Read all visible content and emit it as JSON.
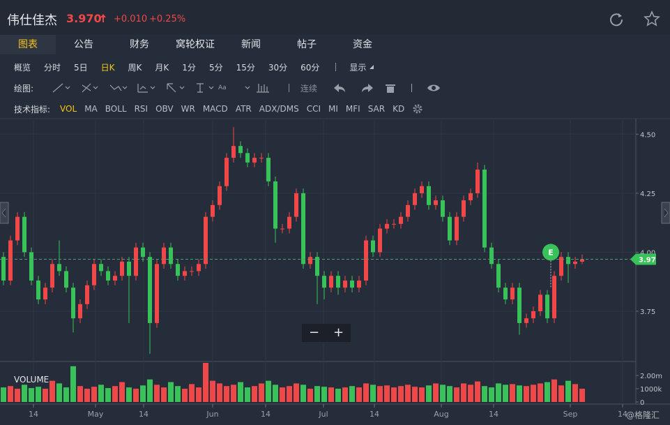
{
  "header": {
    "title": "伟仕佳杰",
    "price": "3.970",
    "change": "+0.010",
    "change_pct": "+0.25%"
  },
  "tabs": {
    "items": [
      "图表",
      "公告",
      "财务",
      "窝轮权证",
      "新闻",
      "帖子",
      "资金"
    ],
    "active": 0
  },
  "periods": {
    "items": [
      "概览",
      "分时",
      "5日",
      "日K",
      "周K",
      "月K",
      "1分",
      "5分",
      "15分",
      "30分",
      "60分"
    ],
    "active": 3,
    "display": "显示"
  },
  "drawing": {
    "label": "绘图:",
    "font_tool": "Aa",
    "continuous": "连续"
  },
  "indicators": {
    "label": "技术指标:",
    "items": [
      "VOL",
      "MA",
      "BOLL",
      "RSI",
      "OBV",
      "WR",
      "MACD",
      "ATR",
      "ADX/DMS",
      "CCI",
      "MI",
      "MFI",
      "SAR",
      "KD"
    ],
    "active": 0
  },
  "zoom": {
    "minus": "−",
    "plus": "+"
  },
  "watermark": "@格隆汇",
  "chart_data": {
    "type": "candlestick",
    "up_color": "#f04848",
    "down_color": "#3ac25a",
    "xlim": [
      -0.5,
      90.7
    ],
    "xticks": [
      {
        "value": 4.3,
        "label": "14"
      },
      {
        "value": 13.2,
        "label": "May"
      },
      {
        "value": 20.1,
        "label": "14"
      },
      {
        "value": 30,
        "label": "Jun"
      },
      {
        "value": 37.6,
        "label": "14"
      },
      {
        "value": 45.9,
        "label": "Jul"
      },
      {
        "value": 53.2,
        "label": "14"
      },
      {
        "value": 62.8,
        "label": "Aug"
      },
      {
        "value": 70.3,
        "label": "14"
      },
      {
        "value": 81.3,
        "label": "Sep"
      },
      {
        "value": 88.8,
        "label": "14"
      }
    ],
    "ylim": [
      3.54,
      4.56
    ],
    "yticks": [
      3.75,
      {
        "value": 4,
        "label": "4.00"
      },
      4.25,
      {
        "value": 4.5,
        "label": "4.50"
      }
    ],
    "grid": true,
    "last_price": 3.97,
    "annotations": [
      {
        "text": "E",
        "x": 78.5,
        "y": 4.0
      }
    ],
    "open": [
      3.98,
      3.88,
      4.05,
      4.15,
      4.0,
      3.88,
      3.8,
      3.85,
      3.95,
      3.92,
      3.85,
      3.72,
      3.78,
      3.86,
      3.95,
      3.92,
      3.88,
      3.9,
      3.96,
      3.9,
      4.02,
      3.98,
      3.7,
      3.95,
      4.02,
      3.95,
      3.9,
      3.92,
      3.92,
      3.95,
      4.15,
      4.2,
      4.28,
      4.4,
      4.45,
      4.42,
      4.38,
      4.4,
      4.4,
      4.3,
      4.1,
      4.1,
      4.15,
      4.25,
      3.95,
      3.98,
      3.9,
      3.85,
      3.9,
      3.85,
      3.88,
      3.85,
      3.88,
      4.05,
      4.0,
      4.1,
      4.12,
      4.12,
      4.15,
      4.2,
      4.25,
      4.28,
      4.2,
      4.22,
      4.15,
      4.05,
      4.15,
      4.22,
      4.25,
      4.35,
      4.02,
      3.95,
      3.85,
      3.8,
      3.85,
      3.7,
      3.72,
      3.75,
      3.82,
      3.72,
      3.9,
      3.98,
      3.95,
      3.96
    ],
    "high": [
      4.0,
      4.07,
      4.17,
      4.17,
      4.02,
      3.9,
      3.87,
      3.97,
      4.05,
      3.94,
      3.87,
      3.8,
      3.88,
      3.97,
      3.97,
      3.94,
      3.92,
      3.98,
      3.98,
      4.04,
      4.04,
      4.0,
      3.97,
      4.04,
      4.04,
      3.97,
      3.94,
      3.94,
      3.97,
      4.17,
      4.22,
      4.3,
      4.42,
      4.53,
      4.47,
      4.44,
      4.42,
      4.42,
      4.42,
      4.32,
      4.12,
      4.17,
      4.27,
      4.27,
      4.0,
      4.0,
      3.92,
      3.92,
      3.92,
      3.9,
      3.9,
      3.9,
      4.07,
      4.07,
      4.12,
      4.14,
      4.14,
      4.17,
      4.22,
      4.27,
      4.3,
      4.3,
      4.24,
      4.24,
      4.17,
      4.17,
      4.24,
      4.27,
      4.38,
      4.37,
      4.04,
      3.97,
      3.87,
      3.87,
      3.87,
      3.74,
      3.77,
      3.84,
      3.84,
      3.92,
      4.0,
      4.0,
      3.98,
      3.99
    ],
    "low": [
      3.86,
      3.86,
      4.03,
      3.98,
      3.86,
      3.78,
      3.78,
      3.83,
      3.9,
      3.83,
      3.66,
      3.7,
      3.76,
      3.84,
      3.9,
      3.86,
      3.86,
      3.88,
      3.7,
      3.88,
      3.96,
      3.57,
      3.68,
      3.93,
      3.93,
      3.88,
      3.88,
      3.9,
      3.9,
      3.93,
      4.13,
      4.18,
      4.26,
      4.38,
      4.4,
      4.36,
      4.36,
      4.38,
      4.28,
      4.04,
      4.08,
      4.08,
      4.13,
      3.93,
      3.93,
      3.78,
      3.8,
      3.83,
      3.82,
      3.83,
      3.83,
      3.83,
      3.86,
      3.98,
      3.98,
      4.08,
      4.1,
      4.1,
      4.13,
      4.18,
      4.23,
      4.18,
      4.18,
      4.13,
      4.03,
      4.03,
      4.13,
      4.2,
      4.23,
      4.0,
      3.93,
      3.83,
      3.78,
      3.78,
      3.65,
      3.68,
      3.7,
      3.73,
      3.7,
      3.7,
      3.88,
      3.87,
      3.93,
      3.95
    ],
    "close": [
      3.88,
      4.05,
      4.15,
      4.0,
      3.88,
      3.8,
      3.85,
      3.95,
      3.92,
      3.85,
      3.72,
      3.78,
      3.86,
      3.95,
      3.92,
      3.88,
      3.9,
      3.96,
      3.9,
      4.02,
      3.98,
      3.7,
      3.95,
      4.02,
      3.95,
      3.9,
      3.92,
      3.92,
      3.95,
      4.15,
      4.2,
      4.28,
      4.4,
      4.45,
      4.42,
      4.38,
      4.4,
      4.4,
      4.3,
      4.1,
      4.1,
      4.15,
      4.25,
      3.95,
      3.98,
      3.9,
      3.85,
      3.9,
      3.85,
      3.88,
      3.85,
      3.88,
      4.05,
      4.0,
      4.1,
      4.12,
      4.12,
      4.15,
      4.2,
      4.25,
      4.28,
      4.2,
      4.22,
      4.15,
      4.05,
      4.15,
      4.22,
      4.25,
      4.35,
      4.02,
      3.95,
      3.85,
      3.8,
      3.85,
      3.7,
      3.72,
      3.75,
      3.82,
      3.72,
      3.9,
      3.98,
      3.95,
      3.96,
      3.97
    ],
    "volume_label": "VOLUME",
    "volume_ylim": [
      0,
      2950000
    ],
    "volume_yticks": [
      0,
      {
        "value": 1000000,
        "label": "1000k"
      },
      {
        "value": 2000000,
        "label": "2.00m"
      }
    ],
    "volume": [
      1100000,
      1200000,
      1000000,
      1300000,
      1050000,
      1150000,
      1000000,
      1600000,
      1400000,
      1100000,
      2700000,
      1200000,
      1000000,
      1150000,
      1300000,
      1050000,
      1200000,
      1500000,
      1100000,
      1000000,
      1250000,
      1700000,
      1300000,
      1100000,
      1500000,
      1200000,
      1000000,
      1350000,
      1100000,
      2950000,
      1600000,
      1400000,
      1200000,
      1300000,
      1500000,
      1100000,
      1200000,
      1400000,
      1600000,
      1300000,
      1100000,
      1200000,
      1400000,
      1300000,
      1000000,
      1200000,
      1150000,
      1100000,
      1000000,
      1100000,
      1200000,
      1100000,
      1400000,
      1300000,
      1200000,
      1250000,
      1100000,
      1200000,
      1300000,
      1150000,
      1100000,
      1250000,
      1400000,
      1300000,
      1200000,
      1100000,
      1400000,
      1300000,
      1550000,
      1200000,
      1100000,
      1400000,
      1300000,
      1350000,
      1250000,
      1200000,
      1300000,
      1400000,
      1500000,
      1700000,
      1250000,
      1600000,
      1350000,
      1000000
    ]
  }
}
